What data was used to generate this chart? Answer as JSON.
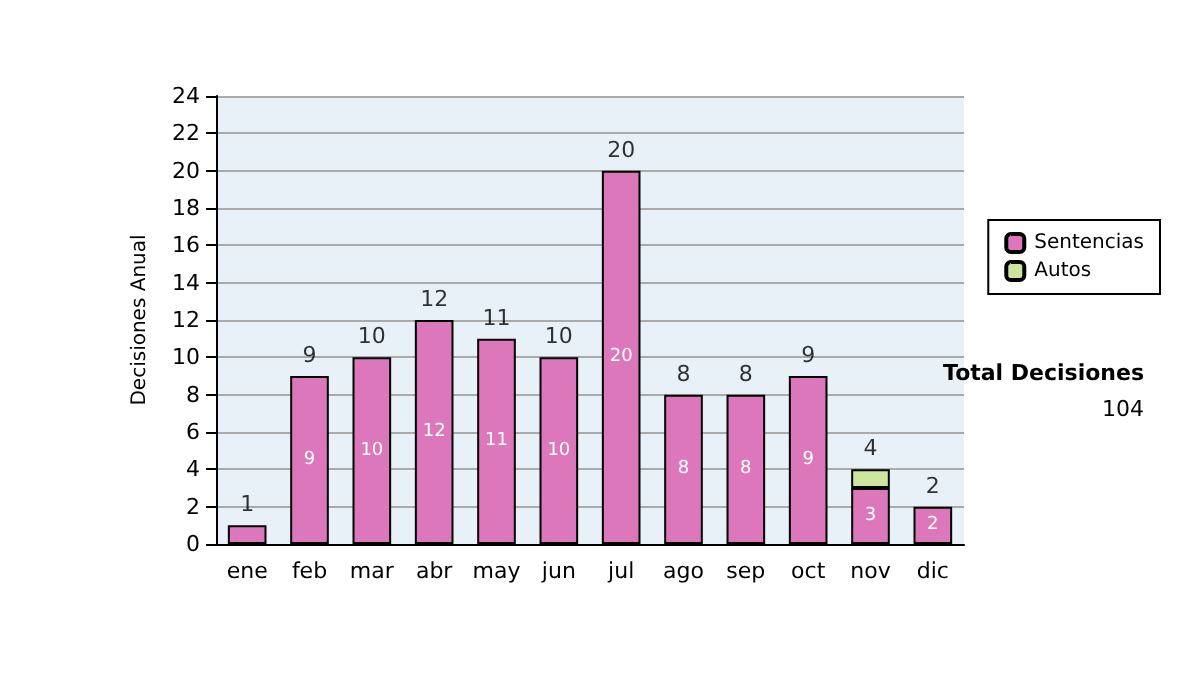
{
  "chart_data": {
    "type": "bar",
    "stacked": true,
    "ylabel": "Decisiones Anual",
    "categories": [
      "ene",
      "feb",
      "mar",
      "abr",
      "may",
      "jun",
      "jul",
      "ago",
      "sep",
      "oct",
      "nov",
      "dic"
    ],
    "series": [
      {
        "name": "Sentencias",
        "color": "#dd77bb",
        "values": [
          1,
          9,
          10,
          12,
          11,
          10,
          20,
          8,
          8,
          9,
          3,
          2
        ],
        "value_labels": [
          null,
          "9",
          "10",
          "12",
          "11",
          "10",
          "20",
          "8",
          "8",
          "9",
          "3",
          "2"
        ]
      },
      {
        "name": "Autos",
        "color": "#cce6a0",
        "values": [
          null,
          null,
          null,
          null,
          null,
          null,
          null,
          null,
          null,
          null,
          1,
          null
        ]
      }
    ],
    "totals": [
      "1",
      "9",
      "10",
      "12",
      "11",
      "10",
      "20",
      "8",
      "8",
      "9",
      "4",
      "2"
    ],
    "ylim": [
      0,
      24
    ],
    "yticks": [
      0,
      2,
      4,
      6,
      8,
      10,
      12,
      14,
      16,
      18,
      20,
      22,
      24
    ],
    "grid": "y",
    "legend": "right",
    "annotations": [
      "Total Decisiones",
      "104"
    ]
  }
}
